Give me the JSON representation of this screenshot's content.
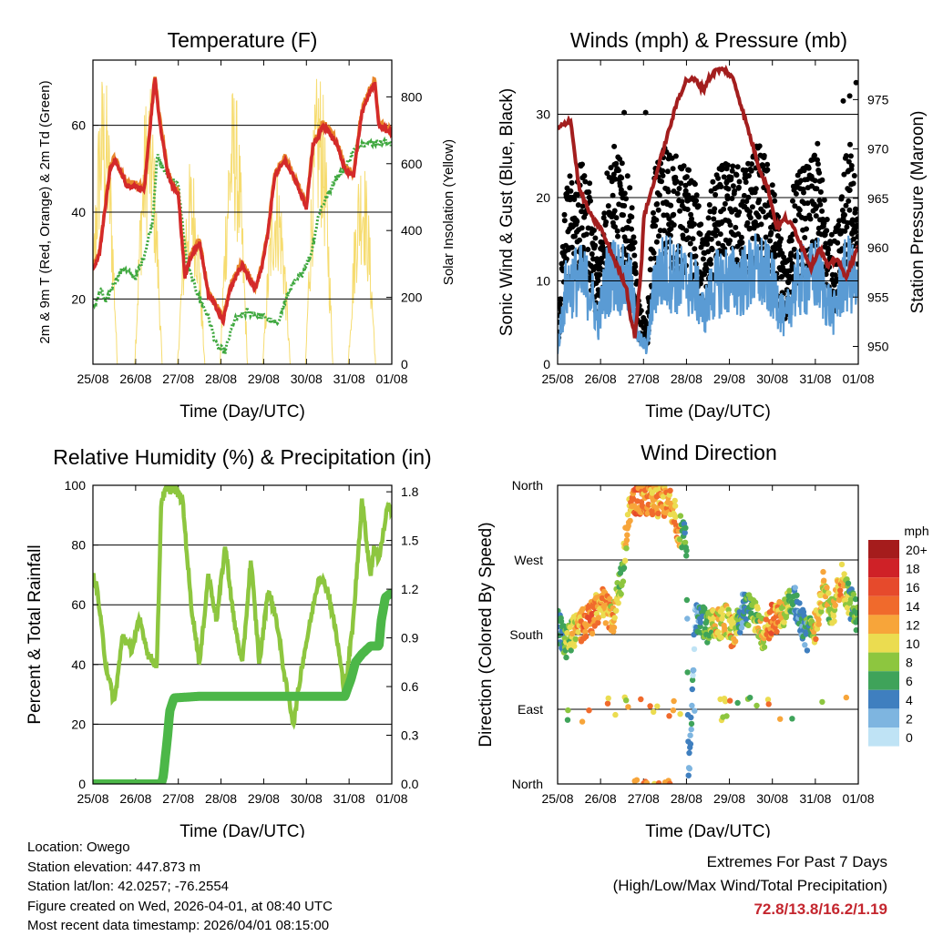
{
  "x_ticks": [
    "25/08",
    "26/08",
    "27/08",
    "28/08",
    "29/08",
    "30/08",
    "31/08",
    "01/08"
  ],
  "colors": {
    "red": "#d42a2a",
    "orange": "#e8862a",
    "green": "#3fa83f",
    "yellow": "#f5d860",
    "blue": "#5a9bd4",
    "black": "#000000",
    "maroon": "#a31e1e",
    "rh": "#8dc63f",
    "rain": "#4cb748"
  },
  "chart_data": [
    {
      "id": "temperature",
      "type": "line",
      "title": "Temperature (F)",
      "xlabel": "Time (Day/UTC)",
      "ylabel_left": "2m & 9m T (Red, Orange) & 2m Td (Green)",
      "ylabel_right": "Solar Insolation (Yellow)",
      "xlim": [
        0,
        7
      ],
      "ylim_left": [
        5,
        75
      ],
      "ylim_right": [
        0,
        910
      ],
      "yticks_left": [
        "20",
        "40",
        "60"
      ],
      "yticks_right": [
        "0",
        "200",
        "400",
        "600",
        "800"
      ],
      "series": [
        {
          "name": "2m T",
          "color": "red",
          "axis": "left",
          "x": [
            0,
            0.15,
            0.4,
            0.5,
            0.8,
            1.0,
            1.2,
            1.45,
            1.55,
            1.75,
            1.85,
            2.0,
            2.15,
            2.3,
            2.5,
            2.7,
            2.9,
            3.05,
            3.2,
            3.5,
            3.8,
            3.95,
            4.1,
            4.25,
            4.5,
            4.8,
            5.0,
            5.15,
            5.4,
            5.7,
            5.9,
            6.1,
            6.3,
            6.5,
            6.6,
            6.7,
            6.85,
            7.0
          ],
          "y": [
            27,
            30,
            50,
            52,
            46,
            46,
            45,
            71,
            62,
            49,
            46,
            44,
            25,
            30,
            33,
            21,
            18,
            15,
            22,
            28,
            22,
            27,
            35,
            48,
            52,
            46,
            41,
            55,
            60,
            56,
            50,
            48,
            63,
            68,
            70,
            60,
            59,
            58
          ]
        },
        {
          "name": "2m Td",
          "color": "green",
          "axis": "left",
          "x": [
            0,
            0.2,
            0.3,
            0.45,
            0.7,
            1.0,
            1.2,
            1.4,
            1.5,
            1.7,
            2.0,
            2.2,
            2.5,
            2.7,
            2.9,
            3.1,
            3.3,
            3.6,
            4.0,
            4.3,
            4.6,
            4.9,
            5.1,
            5.3,
            5.5,
            5.7,
            5.9,
            6.1,
            6.3,
            6.5,
            7.0
          ],
          "y": [
            18,
            22,
            19,
            23,
            27,
            25,
            30,
            38,
            53,
            49,
            46,
            28,
            20,
            16,
            9,
            8,
            15,
            17,
            16,
            14,
            22,
            26,
            30,
            40,
            44,
            48,
            50,
            54,
            56,
            56,
            56
          ]
        },
        {
          "name": "Solar Insolation",
          "color": "yellow",
          "axis": "right",
          "peaks": [
            [
              0.25,
              900
            ],
            [
              1.3,
              850
            ],
            [
              2.3,
              620
            ],
            [
              3.3,
              850
            ],
            [
              4.3,
              600
            ],
            [
              5.3,
              900
            ],
            [
              6.3,
              650
            ]
          ]
        }
      ]
    },
    {
      "id": "winds",
      "type": "line",
      "title": "Winds (mph) & Pressure (mb)",
      "xlabel": "Time (Day/UTC)",
      "ylabel_left": "Sonic Wind & Gust (Blue, Black)",
      "ylabel_right": "Station Pressure (Maroon)",
      "xlim": [
        0,
        7
      ],
      "ylim_left": [
        0,
        36.5
      ],
      "ylim_right": [
        948.2,
        979.0
      ],
      "yticks_left": [
        "0",
        "10",
        "20",
        "30"
      ],
      "yticks_right": [
        "950",
        "955",
        "960",
        "965",
        "970",
        "975"
      ],
      "series": [
        {
          "name": "Station Pressure",
          "color": "maroon",
          "axis": "right",
          "x": [
            0,
            0.3,
            0.5,
            0.8,
            1.0,
            1.2,
            1.4,
            1.6,
            1.7,
            1.8,
            1.95,
            2.0,
            2.2,
            2.4,
            2.6,
            2.8,
            3.0,
            3.2,
            3.4,
            3.5,
            3.7,
            3.9,
            4.1,
            4.3,
            4.5,
            4.7,
            4.9,
            5.1,
            5.3,
            5.5,
            5.7,
            5.9,
            6.1,
            6.3,
            6.5,
            6.7,
            6.9,
            7.0
          ],
          "y": [
            972,
            973,
            966,
            963,
            962,
            960,
            958,
            956,
            953,
            951,
            958,
            963,
            966,
            969,
            972,
            975,
            977,
            977,
            976,
            977,
            978,
            978,
            977,
            974,
            971,
            968,
            966,
            962,
            963,
            962,
            960,
            958,
            960,
            958,
            959,
            957,
            959,
            960
          ]
        },
        {
          "name": "Sonic Wind",
          "color": "blue",
          "axis": "left",
          "base_profile": [
            2,
            9,
            10,
            10,
            9,
            5,
            10,
            11,
            10,
            9,
            3,
            2,
            10,
            11,
            11,
            10,
            10,
            9,
            6,
            9,
            10,
            10,
            10,
            10,
            11,
            11,
            10,
            8,
            5,
            9,
            10,
            10,
            11,
            8,
            6,
            10,
            11,
            8
          ]
        },
        {
          "name": "Gust",
          "color": "black",
          "axis": "left",
          "outliers": [
            [
              1.55,
              30.2
            ],
            [
              2.05,
              30.2
            ],
            [
              6.65,
              31.6
            ],
            [
              6.8,
              32.2
            ],
            [
              6.95,
              33.8
            ]
          ]
        }
      ]
    },
    {
      "id": "humidity",
      "type": "line",
      "title": "Relative Humidity (%) & Precipitation (in)",
      "xlabel": "Time (Day/UTC)",
      "ylabel_left": "Percent & Total Rainfall",
      "xlim": [
        0,
        7
      ],
      "ylim_left": [
        0,
        100
      ],
      "ylim_right": [
        0,
        1.84
      ],
      "yticks_left": [
        "0",
        "20",
        "40",
        "60",
        "80",
        "100"
      ],
      "yticks_right": [
        "0.0",
        "0.3",
        "0.6",
        "0.9",
        "1.2",
        "1.5",
        "1.8"
      ],
      "series": [
        {
          "name": "Relative Humidity",
          "color": "rh",
          "axis": "left",
          "x": [
            0,
            0.1,
            0.3,
            0.5,
            0.7,
            0.9,
            1.1,
            1.3,
            1.5,
            1.6,
            1.7,
            1.9,
            2.1,
            2.3,
            2.5,
            2.7,
            2.9,
            3.1,
            3.3,
            3.5,
            3.7,
            3.9,
            4.1,
            4.3,
            4.5,
            4.7,
            4.9,
            5.1,
            5.3,
            5.5,
            5.7,
            5.9,
            6.1,
            6.3,
            6.5,
            6.6,
            6.7,
            6.9,
            7.0
          ],
          "y": [
            70,
            65,
            40,
            27,
            50,
            45,
            55,
            43,
            40,
            95,
            98,
            99,
            95,
            60,
            40,
            70,
            55,
            80,
            55,
            40,
            75,
            40,
            65,
            55,
            35,
            20,
            40,
            55,
            70,
            65,
            50,
            30,
            55,
            95,
            70,
            80,
            75,
            93,
            92
          ]
        },
        {
          "name": "Total Rainfall",
          "color": "rain",
          "axis": "right",
          "x": [
            0,
            1.6,
            1.65,
            1.75,
            1.8,
            1.9,
            2.5,
            3.0,
            4.0,
            5.0,
            5.9,
            6.05,
            6.15,
            6.3,
            6.5,
            6.7,
            6.75,
            6.85,
            6.95,
            7.0
          ],
          "y": [
            0,
            0,
            0.05,
            0.3,
            0.45,
            0.53,
            0.54,
            0.54,
            0.54,
            0.54,
            0.54,
            0.65,
            0.75,
            0.8,
            0.85,
            0.85,
            1.0,
            1.15,
            1.17,
            1.17
          ]
        }
      ]
    },
    {
      "id": "direction",
      "type": "scatter",
      "title": "Wind Direction",
      "xlabel": "Time (Day/UTC)",
      "ylabel_left": "Direction (Colored By Speed)",
      "xlim": [
        0,
        7
      ],
      "ylim_left": [
        0,
        360
      ],
      "yticks_left": [
        "North",
        "East",
        "South",
        "West",
        "North"
      ],
      "legend_title": "mph",
      "legend_labels": [
        "20+",
        "18",
        "16",
        "14",
        "12",
        "10",
        "8",
        "6",
        "4",
        "2",
        "0"
      ],
      "legend_colors": [
        "#a51c1c",
        "#cf2127",
        "#e64a2c",
        "#f06a2c",
        "#f7a53a",
        "#ebdc50",
        "#8dc63f",
        "#3fa35a",
        "#3f7fbf",
        "#7eb5e0",
        "#bfe3f5"
      ],
      "profile_x": [
        0,
        0.2,
        0.5,
        0.8,
        1.0,
        1.3,
        1.5,
        1.6,
        1.7,
        1.8,
        2.0,
        2.3,
        2.6,
        2.8,
        3.0,
        3.05,
        3.2,
        3.5,
        3.7,
        3.9,
        4.1,
        4.3,
        4.5,
        4.8,
        5.0,
        5.2,
        5.4,
        5.6,
        5.8,
        6.0,
        6.2,
        6.4,
        6.6,
        6.8,
        7.0
      ]
    }
  ],
  "info": {
    "location": "Location: Owego",
    "elevation": "Station elevation: 447.873 m",
    "latlon": "Station lat/lon: 42.0257; -76.2554",
    "created": "Figure created on Wed, 2026-04-01, at 08:40 UTC",
    "recent": "Most recent data timestamp: 2026/04/01 08:15:00"
  },
  "extremes": {
    "line1": "Extremes For Past 7 Days",
    "line2": "(High/Low/Max Wind/Total Precipitation)",
    "values": "72.8/13.8/16.2/1.19"
  }
}
